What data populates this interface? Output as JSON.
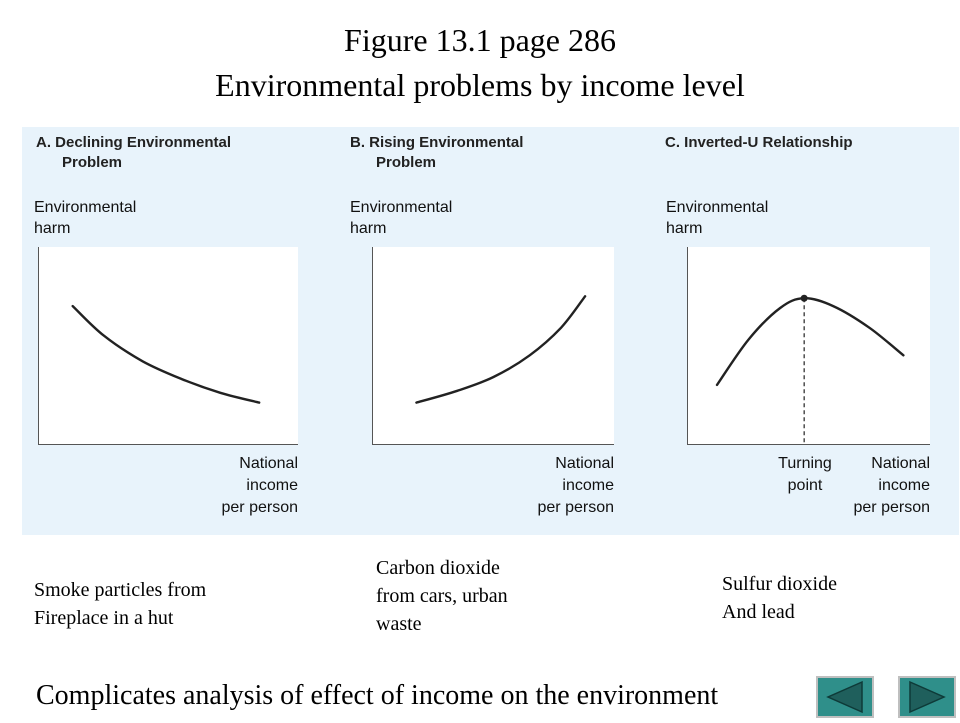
{
  "page": {
    "title_line1": "Figure 13.1 page 286",
    "title_line2": "Environmental problems by income level",
    "footer": "Complicates analysis of effect of income on the environment"
  },
  "colors": {
    "panel_background": "#e8f3fb",
    "curve": "#222222",
    "nav_button_face": "#2f8f8a",
    "nav_button_frame": "#bfbfbf"
  },
  "chart_data": [
    {
      "type": "line",
      "title": "A. Declining Environmental Problem",
      "title_lines": [
        "A. Declining Environmental",
        "Problem"
      ],
      "ylabel_lines": [
        "Environmental",
        "harm"
      ],
      "xlabel_lines": [
        "National",
        "income",
        "per person"
      ],
      "xlim": [
        0,
        10
      ],
      "ylim": [
        0,
        10
      ],
      "grid": false,
      "series": [
        {
          "x": [
            1.3,
            2.5,
            4.0,
            5.5,
            7.0,
            8.5
          ],
          "values": [
            7.0,
            5.5,
            4.2,
            3.3,
            2.6,
            2.1
          ]
        }
      ],
      "example_lines": [
        "Smoke particles from",
        "Fireplace in a hut"
      ]
    },
    {
      "type": "line",
      "title": "B. Rising Environmental Problem",
      "title_lines": [
        "B. Rising Environmental",
        "Problem"
      ],
      "ylabel_lines": [
        "Environmental",
        "harm"
      ],
      "xlabel_lines": [
        "National",
        "income",
        "per person"
      ],
      "xlim": [
        0,
        10
      ],
      "ylim": [
        0,
        10
      ],
      "grid": false,
      "series": [
        {
          "x": [
            1.8,
            3.5,
            5.0,
            6.5,
            7.8,
            8.8
          ],
          "values": [
            2.1,
            2.7,
            3.4,
            4.5,
            5.9,
            7.5
          ]
        }
      ],
      "example_lines": [
        "Carbon dioxide",
        "from cars, urban",
        "waste"
      ]
    },
    {
      "type": "line",
      "title": "C. Inverted-U Relationship",
      "title_lines": [
        "C. Inverted-U Relationship"
      ],
      "ylabel_lines": [
        "Environmental",
        "harm"
      ],
      "xlabel_lines": [
        "National",
        "income",
        "per person"
      ],
      "turning_point_lines": [
        "Turning",
        "point"
      ],
      "turning_point": {
        "x": 4.8,
        "y": 7.4
      },
      "xlim": [
        0,
        10
      ],
      "ylim": [
        0,
        10
      ],
      "grid": false,
      "series": [
        {
          "x": [
            1.2,
            2.5,
            3.8,
            4.8,
            6.0,
            7.5,
            8.9
          ],
          "values": [
            3.0,
            5.3,
            6.9,
            7.4,
            7.0,
            5.9,
            4.5
          ]
        }
      ],
      "example_lines": [
        "Sulfur dioxide",
        "And lead"
      ]
    }
  ],
  "nav": {
    "prev_icon": "triangle-left-icon",
    "next_icon": "triangle-right-icon"
  }
}
